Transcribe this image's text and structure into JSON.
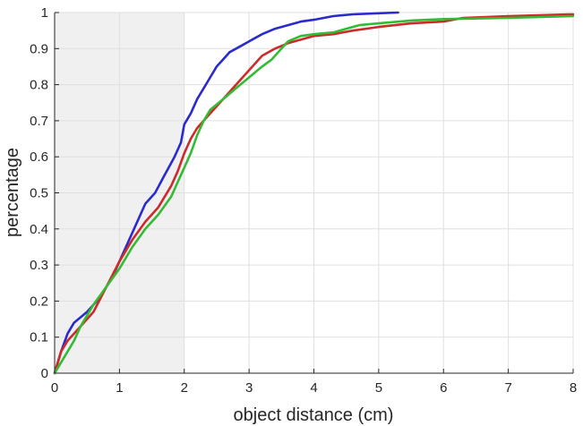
{
  "chart_data": {
    "type": "line",
    "title": "",
    "xlabel": "object distance (cm)",
    "ylabel": "percentage",
    "xlim": [
      0,
      8
    ],
    "ylim": [
      0,
      1
    ],
    "grid": true,
    "legend": "none",
    "shaded_region": {
      "x_from": 0,
      "x_to": 2,
      "color": "#f0f0f0"
    },
    "x_ticks": [
      "0",
      "1",
      "2",
      "3",
      "4",
      "5",
      "6",
      "7",
      "8"
    ],
    "y_ticks": [
      "0",
      "0.1",
      "0.2",
      "0.3",
      "0.4",
      "0.5",
      "0.6",
      "0.7",
      "0.8",
      "0.9",
      "1"
    ],
    "series": [
      {
        "color": "#2b2bcc",
        "points": [
          [
            0,
            0
          ],
          [
            0.1,
            0.06
          ],
          [
            0.2,
            0.11
          ],
          [
            0.3,
            0.14
          ],
          [
            0.5,
            0.17
          ],
          [
            0.7,
            0.21
          ],
          [
            0.9,
            0.27
          ],
          [
            1.1,
            0.35
          ],
          [
            1.3,
            0.43
          ],
          [
            1.4,
            0.47
          ],
          [
            1.55,
            0.5
          ],
          [
            1.7,
            0.55
          ],
          [
            1.85,
            0.6
          ],
          [
            1.95,
            0.64
          ],
          [
            2.0,
            0.69
          ],
          [
            2.1,
            0.72
          ],
          [
            2.2,
            0.76
          ],
          [
            2.3,
            0.79
          ],
          [
            2.4,
            0.82
          ],
          [
            2.5,
            0.85
          ],
          [
            2.6,
            0.87
          ],
          [
            2.7,
            0.89
          ],
          [
            2.9,
            0.91
          ],
          [
            3.0,
            0.92
          ],
          [
            3.1,
            0.93
          ],
          [
            3.2,
            0.94
          ],
          [
            3.4,
            0.955
          ],
          [
            3.6,
            0.965
          ],
          [
            3.8,
            0.975
          ],
          [
            4.0,
            0.98
          ],
          [
            4.3,
            0.99
          ],
          [
            4.6,
            0.995
          ],
          [
            5.0,
            0.998
          ],
          [
            5.3,
            1.0
          ]
        ]
      },
      {
        "color": "#cc2b2b",
        "points": [
          [
            0,
            0
          ],
          [
            0.1,
            0.06
          ],
          [
            0.2,
            0.09
          ],
          [
            0.3,
            0.11
          ],
          [
            0.4,
            0.13
          ],
          [
            0.6,
            0.17
          ],
          [
            0.8,
            0.24
          ],
          [
            1.0,
            0.31
          ],
          [
            1.2,
            0.37
          ],
          [
            1.4,
            0.42
          ],
          [
            1.6,
            0.46
          ],
          [
            1.8,
            0.52
          ],
          [
            1.9,
            0.56
          ],
          [
            2.0,
            0.61
          ],
          [
            2.1,
            0.65
          ],
          [
            2.2,
            0.68
          ],
          [
            2.4,
            0.72
          ],
          [
            2.6,
            0.76
          ],
          [
            2.8,
            0.8
          ],
          [
            3.0,
            0.84
          ],
          [
            3.2,
            0.88
          ],
          [
            3.4,
            0.9
          ],
          [
            3.6,
            0.915
          ],
          [
            3.8,
            0.925
          ],
          [
            4.0,
            0.935
          ],
          [
            4.3,
            0.94
          ],
          [
            4.6,
            0.95
          ],
          [
            5.0,
            0.96
          ],
          [
            5.5,
            0.97
          ],
          [
            6.0,
            0.975
          ],
          [
            6.3,
            0.985
          ],
          [
            7.0,
            0.99
          ],
          [
            8.0,
            0.995
          ]
        ]
      },
      {
        "color": "#33bb33",
        "points": [
          [
            0,
            0
          ],
          [
            0.1,
            0.03
          ],
          [
            0.2,
            0.06
          ],
          [
            0.3,
            0.09
          ],
          [
            0.4,
            0.13
          ],
          [
            0.6,
            0.19
          ],
          [
            0.8,
            0.24
          ],
          [
            1.0,
            0.29
          ],
          [
            1.2,
            0.35
          ],
          [
            1.4,
            0.4
          ],
          [
            1.6,
            0.44
          ],
          [
            1.8,
            0.49
          ],
          [
            1.9,
            0.53
          ],
          [
            2.0,
            0.57
          ],
          [
            2.1,
            0.61
          ],
          [
            2.2,
            0.66
          ],
          [
            2.3,
            0.7
          ],
          [
            2.4,
            0.73
          ],
          [
            2.6,
            0.76
          ],
          [
            2.8,
            0.79
          ],
          [
            3.0,
            0.82
          ],
          [
            3.2,
            0.85
          ],
          [
            3.35,
            0.87
          ],
          [
            3.5,
            0.9
          ],
          [
            3.6,
            0.92
          ],
          [
            3.8,
            0.935
          ],
          [
            4.0,
            0.94
          ],
          [
            4.3,
            0.945
          ],
          [
            4.5,
            0.955
          ],
          [
            4.7,
            0.965
          ],
          [
            5.0,
            0.97
          ],
          [
            5.5,
            0.978
          ],
          [
            6.0,
            0.982
          ],
          [
            7.0,
            0.985
          ],
          [
            8.0,
            0.99
          ]
        ]
      }
    ]
  }
}
